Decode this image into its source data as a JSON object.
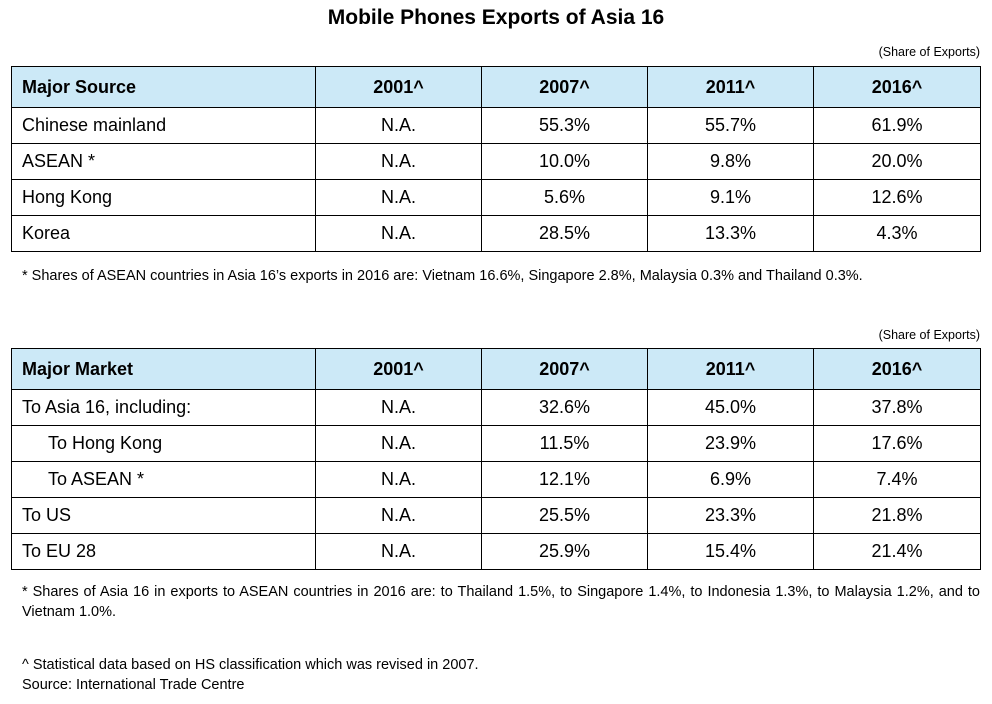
{
  "title": "Mobile Phones Exports of Asia 16",
  "share_note": "(Share of Exports)",
  "source_table": {
    "headers": [
      "Major Source",
      "2001^",
      "2007^",
      "2011^",
      "2016^"
    ],
    "rows": [
      {
        "label": "Chinese mainland",
        "values": [
          "N.A.",
          "55.3%",
          "55.7%",
          "61.9%"
        ]
      },
      {
        "label": "ASEAN *",
        "values": [
          "N.A.",
          "10.0%",
          "9.8%",
          "20.0%"
        ]
      },
      {
        "label": "Hong Kong",
        "values": [
          "N.A.",
          "5.6%",
          "9.1%",
          "12.6%"
        ]
      },
      {
        "label": "Korea",
        "values": [
          "N.A.",
          "28.5%",
          "13.3%",
          "4.3%"
        ]
      }
    ],
    "footnote": "* Shares of ASEAN countries in Asia 16’s exports in 2016 are: Vietnam 16.6%, Singapore 2.8%, Malaysia 0.3% and Thailand 0.3%."
  },
  "market_table": {
    "headers": [
      "Major Market",
      "2001^",
      "2007^",
      "2011^",
      "2016^"
    ],
    "rows": [
      {
        "label": "To Asia 16, including:",
        "values": [
          "N.A.",
          "32.6%",
          "45.0%",
          "37.8%"
        ]
      },
      {
        "label": "To Hong Kong",
        "values": [
          "N.A.",
          "11.5%",
          "23.9%",
          "17.6%"
        ]
      },
      {
        "label": "To ASEAN *",
        "values": [
          "N.A.",
          "12.1%",
          "6.9%",
          "7.4%"
        ]
      },
      {
        "label": "To US",
        "values": [
          "N.A.",
          "25.5%",
          "23.3%",
          "21.8%"
        ]
      },
      {
        "label": "To EU 28",
        "values": [
          "N.A.",
          "25.9%",
          "15.4%",
          "21.4%"
        ]
      }
    ],
    "footnote": "* Shares of Asia 16 in exports to ASEAN countries in 2016 are: to Thailand 1.5%, to Singapore 1.4%, to Indonesia 1.3%, to Malaysia 1.2%, and to Vietnam 1.0%."
  },
  "notes": {
    "statistical": "^ Statistical data based on HS classification which was revised in 2007.",
    "source": "Source: International Trade Centre"
  },
  "colors": {
    "header_background": "#cce9f7"
  }
}
